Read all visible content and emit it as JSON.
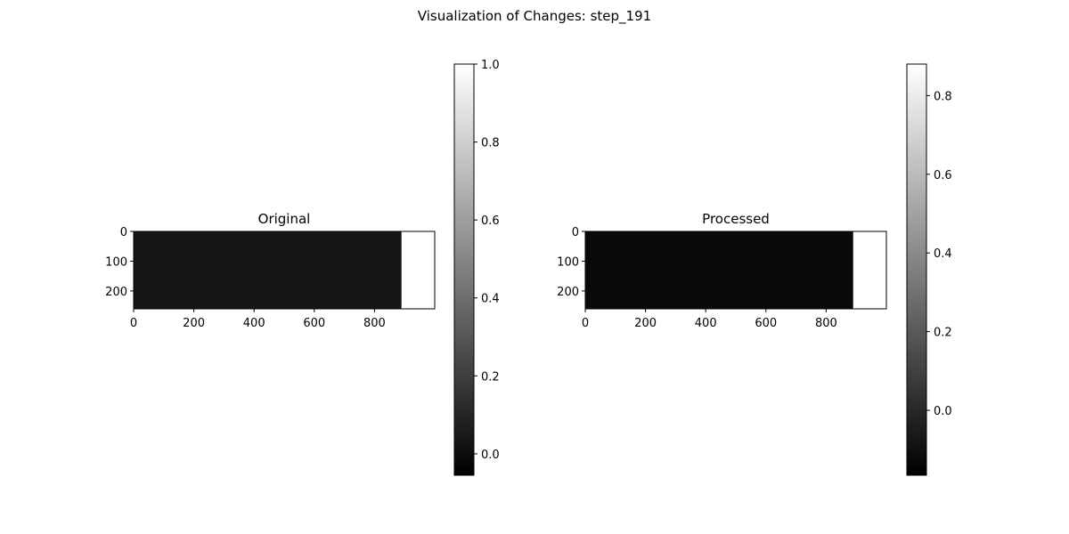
{
  "figure": {
    "title": "Visualization of Changes: step_191"
  },
  "chart_data": [
    {
      "type": "heatmap",
      "title": "Original",
      "colormap": "gray",
      "x_ticks": [
        0,
        200,
        400,
        600,
        800
      ],
      "y_ticks": [
        0,
        100,
        200
      ],
      "xlim": [
        0,
        1000
      ],
      "ylim": [
        260,
        0
      ],
      "image_shape": [
        260,
        1000
      ],
      "regions": [
        {
          "x_range": [
            0,
            890
          ],
          "value": 0.03
        },
        {
          "x_range": [
            890,
            1000
          ],
          "value": 1.0
        }
      ],
      "colorbar": {
        "range": [
          -0.055,
          1.0
        ],
        "ticks": [
          0.0,
          0.2,
          0.4,
          0.6,
          0.8,
          1.0
        ],
        "tick_labels": [
          "0.0",
          "0.2",
          "0.4",
          "0.6",
          "0.8",
          "1.0"
        ]
      }
    },
    {
      "type": "heatmap",
      "title": "Processed",
      "colormap": "gray",
      "x_ticks": [
        0,
        200,
        400,
        600,
        800
      ],
      "y_ticks": [
        0,
        100,
        200
      ],
      "xlim": [
        0,
        1000
      ],
      "ylim": [
        260,
        0
      ],
      "image_shape": [
        260,
        1000
      ],
      "regions": [
        {
          "x_range": [
            0,
            890
          ],
          "value": -0.13
        },
        {
          "x_range": [
            890,
            1000
          ],
          "value": 0.88
        }
      ],
      "colorbar": {
        "range": [
          -0.165,
          0.88
        ],
        "ticks": [
          0.0,
          0.2,
          0.4,
          0.6,
          0.8
        ],
        "tick_labels": [
          "0.0",
          "0.2",
          "0.4",
          "0.6",
          "0.8"
        ]
      }
    }
  ]
}
